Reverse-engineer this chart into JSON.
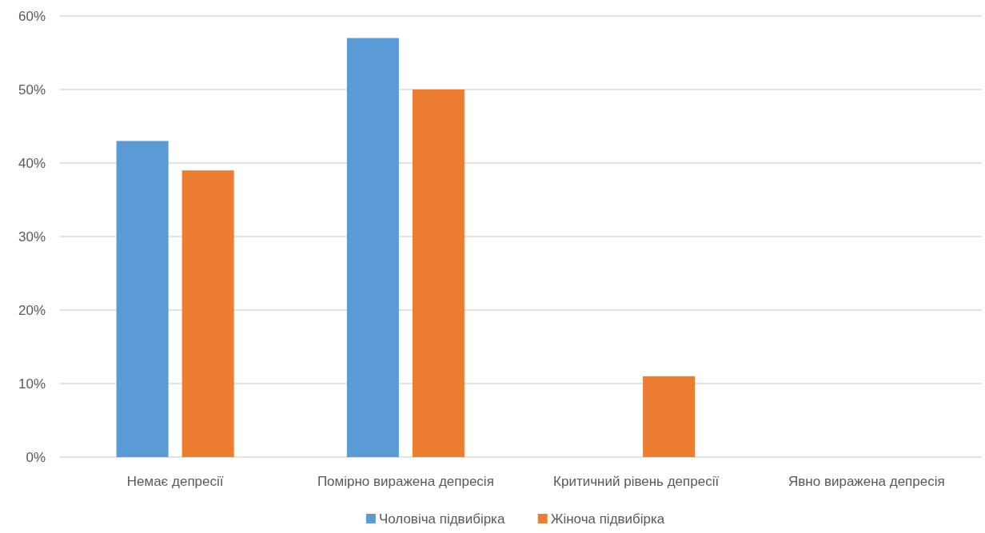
{
  "chart_data": {
    "type": "bar",
    "categories": [
      "Немає депресії",
      "Помірно виражена депресія",
      "Критичний рівень депресії",
      "Явно виражена депресія"
    ],
    "series": [
      {
        "name": "Чоловіча підвибірка",
        "color": "#5b9bd5",
        "values": [
          43,
          57,
          0,
          0
        ]
      },
      {
        "name": "Жіноча підвибірка",
        "color": "#ed7d31",
        "values": [
          39,
          50,
          11,
          0
        ]
      }
    ],
    "ylim": [
      0,
      60
    ],
    "yticks": [
      {
        "value": 0,
        "label": "0%"
      },
      {
        "value": 10,
        "label": "10%"
      },
      {
        "value": 20,
        "label": "20%"
      },
      {
        "value": 30,
        "label": "30%"
      },
      {
        "value": 40,
        "label": "40%"
      },
      {
        "value": 50,
        "label": "50%"
      },
      {
        "value": 60,
        "label": "60%"
      }
    ],
    "grid": "y",
    "legend": "bottom"
  }
}
